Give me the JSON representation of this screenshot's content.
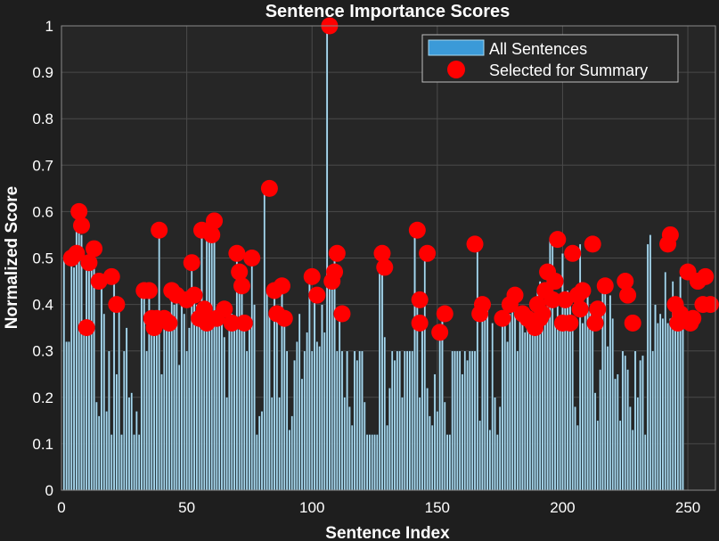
{
  "colors": {
    "background": "#1e1e1e",
    "plot_background": "#262626",
    "grid": "#4a4a4a",
    "bar_fill": "#a8d8ee",
    "bar_edge": "#1a2a33",
    "selected_marker": "#ff0000",
    "legend_bar_fill": "#3b9ad8",
    "text": "#ffffff"
  },
  "chart_data": {
    "type": "bar",
    "title": "Sentence Importance Scores",
    "xlabel": "Sentence Index",
    "ylabel": "Normalized Score",
    "xlim": [
      0,
      261
    ],
    "ylim": [
      0,
      1
    ],
    "xticks": [
      0,
      50,
      100,
      150,
      200,
      250
    ],
    "yticks": [
      0,
      0.1,
      0.2,
      0.3,
      0.4,
      0.5,
      0.6,
      0.7,
      0.8,
      0.9,
      1
    ],
    "ytick_labels": [
      "0",
      "0.1",
      "0.2",
      "0.3",
      "0.4",
      "0.5",
      "0.6",
      "0.7",
      "0.8",
      "0.9",
      "1"
    ],
    "grid": true,
    "legend_position": "top-right",
    "legend": [
      "All Sentences",
      "Selected for Summary"
    ],
    "series": [
      {
        "name": "All Sentences",
        "x_start": 1,
        "values": [
          0.5,
          0.32,
          0.32,
          0.5,
          0.48,
          0.6,
          0.57,
          0.55,
          0.35,
          0.5,
          0.5,
          0.5,
          0.52,
          0.19,
          0.16,
          0.45,
          0.38,
          0.17,
          0.3,
          0.12,
          0.46,
          0.25,
          0.4,
          0.12,
          0.3,
          0.35,
          0.2,
          0.21,
          0.12,
          0.17,
          0.12,
          0.43,
          0.43,
          0.3,
          0.43,
          0.38,
          0.36,
          0.36,
          0.56,
          0.25,
          0.37,
          0.37,
          0.36,
          0.43,
          0.4,
          0.42,
          0.27,
          0.41,
          0.38,
          0.3,
          0.35,
          0.49,
          0.42,
          0.4,
          0.38,
          0.56,
          0.37,
          0.55,
          0.57,
          0.58,
          0.55,
          0.37,
          0.38,
          0.4,
          0.33,
          0.2,
          0.36,
          0.38,
          0.36,
          0.51,
          0.47,
          0.44,
          0.37,
          0.3,
          0.37,
          0.5,
          0.4,
          0.12,
          0.16,
          0.17,
          0.65,
          0.43,
          0.38,
          0.2,
          0.44,
          0.38,
          0.2,
          0.44,
          0.38,
          0.3,
          0.13,
          0.16,
          0.28,
          0.32,
          0.38,
          0.24,
          0.3,
          0.34,
          0.46,
          0.3,
          0.42,
          0.32,
          0.31,
          0.4,
          0.34,
          1.0,
          0.45,
          0.47,
          0.51,
          0.3,
          0.39,
          0.3,
          0.2,
          0.3,
          0.18,
          0.14,
          0.3,
          0.28,
          0.3,
          0.3,
          0.19,
          0.12,
          0.12,
          0.12,
          0.12,
          0.12,
          0.51,
          0.48,
          0.33,
          0.14,
          0.22,
          0.3,
          0.28,
          0.3,
          0.3,
          0.2,
          0.3,
          0.3,
          0.3,
          0.3,
          0.56,
          0.41,
          0.2,
          0.36,
          0.51,
          0.22,
          0.16,
          0.14,
          0.25,
          0.17,
          0.34,
          0.38,
          0.19,
          0.12,
          0.12,
          0.3,
          0.3,
          0.3,
          0.3,
          0.25,
          0.3,
          0.28,
          0.3,
          0.3,
          0.3,
          0.53,
          0.15,
          0.37,
          0.4,
          0.4,
          0.13,
          0.36,
          0.2,
          0.12,
          0.18,
          0.37,
          0.37,
          0.32,
          0.38,
          0.41,
          0.42,
          0.3,
          0.37,
          0.38,
          0.34,
          0.37,
          0.36,
          0.37,
          0.4,
          0.43,
          0.45,
          0.36,
          0.39,
          0.46,
          0.54,
          0.53,
          0.36,
          0.41,
          0.36,
          0.51,
          0.4,
          0.43,
          0.42,
          0.37,
          0.18,
          0.14,
          0.53,
          0.36,
          0.38,
          0.44,
          0.39,
          0.35,
          0.21,
          0.15,
          0.26,
          0.44,
          0.45,
          0.31,
          0.42,
          0.37,
          0.24,
          0.25,
          0.15,
          0.3,
          0.29,
          0.26,
          0.18,
          0.13,
          0.3,
          0.2,
          0.28,
          0.29,
          0.12,
          0.53,
          0.55,
          0.3,
          0.4,
          0.36,
          0.38,
          0.37,
          0.47,
          0.36,
          0.37,
          0.45,
          0.39,
          0.4,
          0.46,
          0.4
        ]
      },
      {
        "name": "Selected for Summary",
        "type": "scatter",
        "points": [
          [
            4,
            0.5
          ],
          [
            7,
            0.6
          ],
          [
            8,
            0.57
          ],
          [
            6,
            0.51
          ],
          [
            10,
            0.35
          ],
          [
            11,
            0.49
          ],
          [
            13,
            0.52
          ],
          [
            15,
            0.45
          ],
          [
            20,
            0.46
          ],
          [
            22,
            0.4
          ],
          [
            33,
            0.43
          ],
          [
            35,
            0.43
          ],
          [
            36,
            0.37
          ],
          [
            37,
            0.35
          ],
          [
            38,
            0.37
          ],
          [
            39,
            0.56
          ],
          [
            41,
            0.37
          ],
          [
            43,
            0.36
          ],
          [
            44,
            0.43
          ],
          [
            46,
            0.42
          ],
          [
            50,
            0.41
          ],
          [
            52,
            0.49
          ],
          [
            53,
            0.42
          ],
          [
            55,
            0.37
          ],
          [
            56,
            0.56
          ],
          [
            57,
            0.39
          ],
          [
            58,
            0.36
          ],
          [
            59,
            0.56
          ],
          [
            60,
            0.55
          ],
          [
            61,
            0.58
          ],
          [
            62,
            0.37
          ],
          [
            65,
            0.39
          ],
          [
            68,
            0.36
          ],
          [
            70,
            0.51
          ],
          [
            71,
            0.47
          ],
          [
            72,
            0.44
          ],
          [
            73,
            0.36
          ],
          [
            76,
            0.5
          ],
          [
            83,
            0.65
          ],
          [
            85,
            0.43
          ],
          [
            86,
            0.38
          ],
          [
            88,
            0.44
          ],
          [
            89,
            0.37
          ],
          [
            100,
            0.46
          ],
          [
            102,
            0.42
          ],
          [
            107,
            1.0
          ],
          [
            108,
            0.45
          ],
          [
            109,
            0.47
          ],
          [
            110,
            0.51
          ],
          [
            112,
            0.38
          ],
          [
            128,
            0.51
          ],
          [
            129,
            0.48
          ],
          [
            142,
            0.56
          ],
          [
            143,
            0.41
          ],
          [
            143,
            0.36
          ],
          [
            146,
            0.51
          ],
          [
            151,
            0.34
          ],
          [
            153,
            0.38
          ],
          [
            165,
            0.53
          ],
          [
            167,
            0.38
          ],
          [
            168,
            0.4
          ],
          [
            176,
            0.37
          ],
          [
            179,
            0.4
          ],
          [
            181,
            0.42
          ],
          [
            184,
            0.38
          ],
          [
            186,
            0.37
          ],
          [
            188,
            0.36
          ],
          [
            189,
            0.35
          ],
          [
            190,
            0.4
          ],
          [
            191,
            0.37
          ],
          [
            192,
            0.38
          ],
          [
            193,
            0.43
          ],
          [
            194,
            0.47
          ],
          [
            196,
            0.41
          ],
          [
            197,
            0.45
          ],
          [
            198,
            0.54
          ],
          [
            200,
            0.36
          ],
          [
            201,
            0.41
          ],
          [
            203,
            0.36
          ],
          [
            204,
            0.51
          ],
          [
            206,
            0.42
          ],
          [
            207,
            0.39
          ],
          [
            208,
            0.43
          ],
          [
            212,
            0.53
          ],
          [
            213,
            0.36
          ],
          [
            214,
            0.39
          ],
          [
            217,
            0.44
          ],
          [
            225,
            0.45
          ],
          [
            226,
            0.42
          ],
          [
            228,
            0.36
          ],
          [
            242,
            0.53
          ],
          [
            243,
            0.55
          ],
          [
            245,
            0.4
          ],
          [
            246,
            0.36
          ],
          [
            247,
            0.38
          ],
          [
            248,
            0.37
          ],
          [
            250,
            0.47
          ],
          [
            251,
            0.36
          ],
          [
            252,
            0.37
          ],
          [
            254,
            0.45
          ],
          [
            256,
            0.4
          ],
          [
            257,
            0.46
          ],
          [
            259,
            0.4
          ]
        ]
      }
    ]
  }
}
